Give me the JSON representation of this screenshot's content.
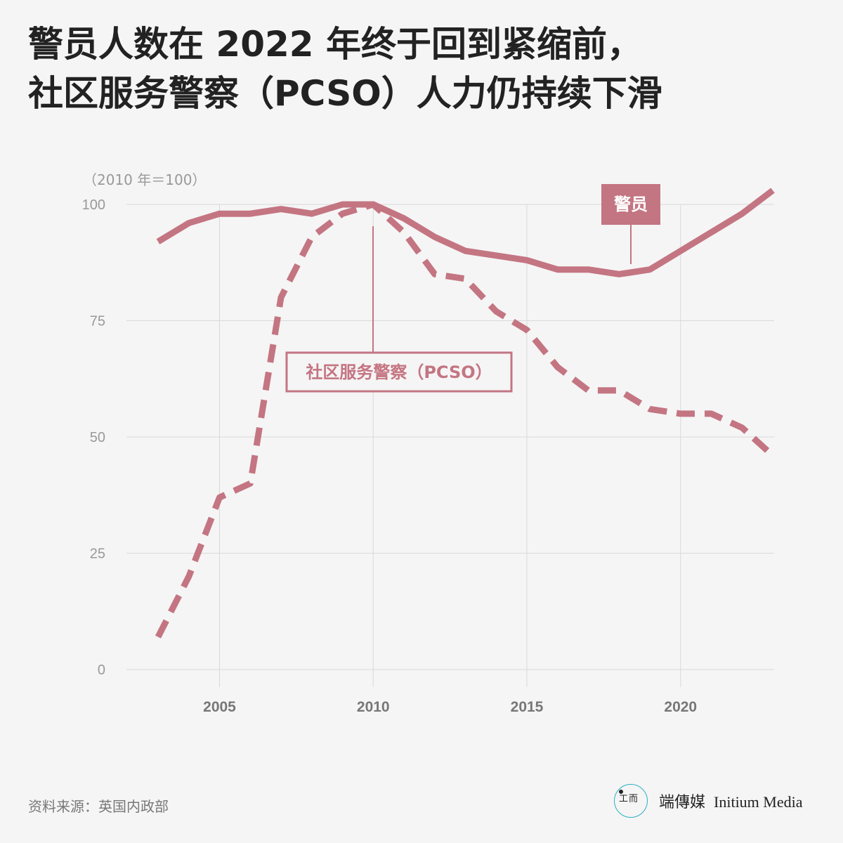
{
  "header": {
    "title_line1": "警员人数在 2022 年终于回到紧缩前，",
    "title_line2": "社区服务警察（PCSO）人力仍持续下滑"
  },
  "footer": {
    "source": "资料来源：英国内政部",
    "brand_cn": "端傳媒",
    "brand_en": "Initium Media"
  },
  "colors": {
    "series": "#c47582",
    "grid": "#d9d9d9",
    "tick": "#999999",
    "xtick": "#777777"
  },
  "chart_data": {
    "type": "line",
    "unit_label": "（2010 年＝100）",
    "xlim": [
      2003,
      2023
    ],
    "ylim": [
      0,
      100
    ],
    "yticks": [
      0,
      25,
      50,
      75,
      100
    ],
    "xticks": [
      2005,
      2010,
      2015,
      2020
    ],
    "grid": true,
    "x": [
      2003,
      2004,
      2005,
      2006,
      2007,
      2008,
      2009,
      2010,
      2011,
      2012,
      2013,
      2014,
      2015,
      2016,
      2017,
      2018,
      2019,
      2020,
      2021,
      2022,
      2023
    ],
    "series": [
      {
        "name": "警员",
        "style": "solid",
        "values": [
          92,
          96,
          98,
          98,
          99,
          98,
          100,
          100,
          97,
          93,
          90,
          89,
          88,
          86,
          86,
          85,
          86,
          90,
          94,
          98,
          103
        ]
      },
      {
        "name": "社区服务警察（PCSO）",
        "style": "dashed",
        "values": [
          7,
          20,
          37,
          40,
          80,
          93,
          98,
          100,
          94,
          85,
          84,
          77,
          73,
          65,
          60,
          60,
          56,
          55,
          55,
          52,
          46
        ]
      }
    ]
  }
}
